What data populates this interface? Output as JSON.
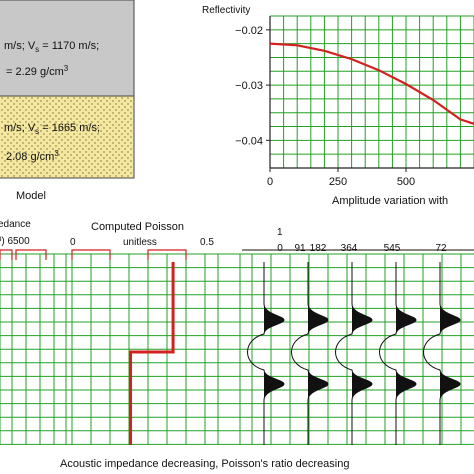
{
  "model": {
    "upper_layer": {
      "line1": "m/s; V",
      "line1_sub": "s",
      "line1_rest": " = 1170 m/s;",
      "line2": "= 2.29 g/cm",
      "line2_sup": "3",
      "color": "#c8c8c8"
    },
    "lower_layer": {
      "line1": "m/s; V",
      "line1_sub": "s",
      "line1_rest": " = 1665 m/s;",
      "line2": "2.08 g/cm",
      "line2_sup": "3",
      "color": "#f4e7a0"
    },
    "label": "Model"
  },
  "reflectivity_chart": {
    "ylabel": "Reflectivity",
    "xlabel": "Amplitude variation with",
    "yticks": [
      "-0.02",
      "-0.03",
      "-0.04"
    ],
    "xticks": [
      "0",
      "250",
      "500"
    ],
    "curve_color": "#d42020",
    "grid_color": "#22a022"
  },
  "impedance_track": {
    "title": "edance",
    "unit_row": "³) 6500"
  },
  "poisson_track": {
    "title": "Computed Poisson",
    "unit": "unitless",
    "scale_min": "0",
    "scale_max": "0.5",
    "step_values": [
      0.38,
      0.22
    ]
  },
  "seismic_track": {
    "top_label": "1",
    "trace_labels": [
      "0",
      "91",
      "182",
      "364",
      "545",
      "72"
    ]
  },
  "caption": "Acoustic impedance decreasing, Poisson's ratio decreasing",
  "chart_data": {
    "type": "line",
    "title": "",
    "xlabel": "Amplitude variation with",
    "ylabel": "Reflectivity",
    "x": [
      0,
      100,
      200,
      300,
      400,
      500,
      600,
      700
    ],
    "series": [
      {
        "values": [
          -0.0225,
          -0.0228,
          -0.0238,
          -0.0253,
          -0.0273,
          -0.0298,
          -0.0327,
          -0.0362
        ]
      }
    ],
    "xlim": [
      0,
      750
    ],
    "ylim": [
      -0.045,
      -0.0175
    ],
    "grid": true
  }
}
